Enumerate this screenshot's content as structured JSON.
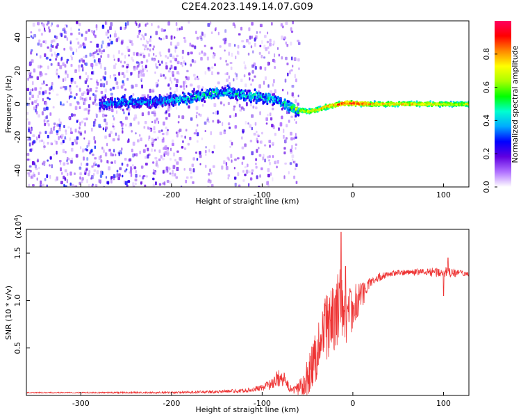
{
  "title": "C2E4.2023.149.14.07.G09",
  "chart_data": [
    {
      "type": "heatmap",
      "title": "C2E4.2023.149.14.07.G09",
      "xlabel": "Height of straight line (km)",
      "ylabel": "Frequency (Hz)",
      "xlim": [
        -360,
        128
      ],
      "ylim": [
        -50,
        50
      ],
      "xticks": [
        -300,
        -200,
        -100,
        0,
        100
      ],
      "yticks": [
        -40,
        -20,
        0,
        20,
        40
      ],
      "colorbar": {
        "label": "Normalized spectral amplitude",
        "range": [
          0,
          1
        ],
        "ticks": [
          "0.0",
          "0.2",
          "0.4",
          "0.6",
          "0.8"
        ],
        "colors": [
          "#ffffff",
          "#b070ff",
          "#6000e0",
          "#0000ff",
          "#00aaff",
          "#00ffd0",
          "#00ff00",
          "#aaff00",
          "#ffff00",
          "#ff8800",
          "#ff0000",
          "#ff0060"
        ]
      },
      "ridge": {
        "x": [
          -280,
          -250,
          -220,
          -200,
          -180,
          -160,
          -140,
          -120,
          -100,
          -85,
          -70,
          -60,
          -50,
          -40,
          -30,
          -20,
          -10,
          0,
          20,
          50,
          80,
          110,
          128
        ],
        "y": [
          1,
          2,
          2,
          3,
          4,
          7,
          8,
          6,
          5,
          3,
          -1,
          -3,
          -4,
          -3,
          -1,
          0,
          1,
          1,
          0.5,
          0.5,
          0.5,
          0.5,
          0.5
        ],
        "peak_amplitude": [
          0.35,
          0.45,
          0.4,
          0.45,
          0.5,
          0.55,
          0.5,
          0.5,
          0.5,
          0.45,
          0.6,
          0.7,
          0.75,
          0.8,
          0.85,
          0.9,
          0.95,
          1.0,
          0.85,
          0.8,
          0.8,
          0.75,
          0.75
        ]
      },
      "noise_floor_end_x": -70
    },
    {
      "type": "line",
      "xlabel": "Height of straight line (km)",
      "ylabel": "SNR (10 * v/v)",
      "y_multiplier_label": "(x10",
      "y_multiplier_exp": "4",
      "y_multiplier_close": ")",
      "xlim": [
        -360,
        128
      ],
      "ylim": [
        0,
        1.75
      ],
      "xticks": [
        -300,
        -200,
        -100,
        0,
        100
      ],
      "yticks": [
        "0.5",
        "1.0",
        "1.5"
      ],
      "series": [
        {
          "color": "#ee3333",
          "x": [
            -360,
            -300,
            -250,
            -200,
            -150,
            -120,
            -100,
            -90,
            -80,
            -75,
            -70,
            -65,
            -60,
            -55,
            -50,
            -45,
            -40,
            -35,
            -30,
            -25,
            -20,
            -15,
            -10,
            -5,
            0,
            5,
            10,
            15,
            20,
            30,
            40,
            60,
            80,
            100,
            110,
            128
          ],
          "y": [
            0.03,
            0.03,
            0.03,
            0.03,
            0.04,
            0.05,
            0.08,
            0.12,
            0.2,
            0.15,
            0.08,
            0.05,
            0.08,
            0.12,
            0.2,
            0.3,
            0.45,
            0.6,
            0.7,
            0.75,
            0.85,
            0.95,
            0.9,
            0.85,
            0.9,
            1.0,
            1.05,
            1.12,
            1.2,
            1.25,
            1.28,
            1.3,
            1.3,
            1.3,
            1.29,
            1.28
          ],
          "noise": [
            0.005,
            0.006,
            0.008,
            0.01,
            0.015,
            0.02,
            0.03,
            0.06,
            0.1,
            0.08,
            0.04,
            0.04,
            0.08,
            0.12,
            0.2,
            0.25,
            0.3,
            0.35,
            0.4,
            0.4,
            0.4,
            0.4,
            0.35,
            0.3,
            0.25,
            0.2,
            0.15,
            0.1,
            0.05,
            0.04,
            0.03,
            0.03,
            0.04,
            0.06,
            0.05,
            0.02
          ],
          "spikes": [
            [
              -13,
              1.72
            ],
            [
              -30,
              0.95
            ],
            [
              -20,
              1.02
            ],
            [
              -8,
              1.36
            ],
            [
              -2,
              1.1
            ],
            [
              105,
              1.45
            ],
            [
              100,
              1.05
            ]
          ]
        }
      ]
    }
  ]
}
